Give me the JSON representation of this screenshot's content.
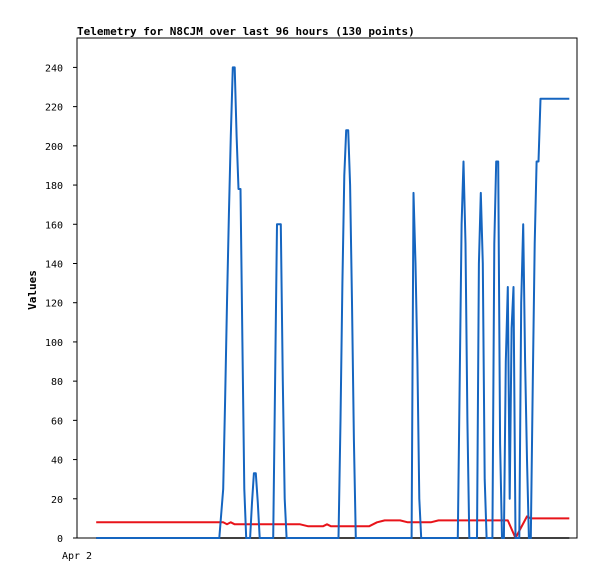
{
  "chart_data": {
    "type": "line",
    "title": "Telemetry for N8CJM over last 96 hours (130 points)",
    "xlabel": "",
    "ylabel": "Values",
    "x_tick_labels": [
      "Apr 2"
    ],
    "x_range_points": [
      0,
      130
    ],
    "ylim": [
      0,
      255
    ],
    "y_ticks": [
      0,
      20,
      40,
      60,
      80,
      100,
      120,
      140,
      160,
      180,
      200,
      220,
      240
    ],
    "grid": false,
    "legend": "none",
    "series": [
      {
        "color": "#000000",
        "points": [
          [
            5,
            0
          ],
          [
            128,
            0
          ]
        ]
      },
      {
        "color": "#e8141a",
        "points": [
          [
            5,
            8
          ],
          [
            38,
            8
          ],
          [
            39,
            7
          ],
          [
            40,
            8
          ],
          [
            41,
            7
          ],
          [
            58,
            7
          ],
          [
            60,
            6
          ],
          [
            64,
            6
          ],
          [
            65,
            7
          ],
          [
            66,
            6
          ],
          [
            76,
            6
          ],
          [
            78,
            8
          ],
          [
            80,
            9
          ],
          [
            84,
            9
          ],
          [
            86,
            8
          ],
          [
            92,
            8
          ],
          [
            94,
            9
          ],
          [
            99,
            9
          ],
          [
            103,
            9
          ],
          [
            112,
            9
          ],
          [
            114,
            0
          ],
          [
            117,
            11
          ],
          [
            118,
            10
          ],
          [
            128,
            10
          ]
        ]
      },
      {
        "color": "#1565c0",
        "points": [
          [
            5,
            0
          ],
          [
            37,
            0
          ],
          [
            38,
            25
          ],
          [
            38.5,
            70
          ],
          [
            39,
            120
          ],
          [
            39.5,
            165
          ],
          [
            40,
            205
          ],
          [
            40.5,
            240
          ],
          [
            41,
            240
          ],
          [
            41.5,
            205
          ],
          [
            42,
            178
          ],
          [
            42.5,
            178
          ],
          [
            43,
            100
          ],
          [
            43.5,
            25
          ],
          [
            44,
            0
          ],
          [
            45,
            0
          ],
          [
            45.5,
            18
          ],
          [
            46,
            33
          ],
          [
            46.5,
            33
          ],
          [
            47,
            18
          ],
          [
            47.5,
            0
          ],
          [
            51,
            0
          ],
          [
            51.5,
            80
          ],
          [
            52,
            160
          ],
          [
            53,
            160
          ],
          [
            53.5,
            80
          ],
          [
            54,
            20
          ],
          [
            54.5,
            0
          ],
          [
            68,
            0
          ],
          [
            68.5,
            60
          ],
          [
            69,
            130
          ],
          [
            69.5,
            185
          ],
          [
            70,
            208
          ],
          [
            70.5,
            208
          ],
          [
            71,
            180
          ],
          [
            71.5,
            120
          ],
          [
            72,
            50
          ],
          [
            72.5,
            0
          ],
          [
            87,
            0
          ],
          [
            87.5,
            176
          ],
          [
            88,
            140
          ],
          [
            88.5,
            90
          ],
          [
            89,
            20
          ],
          [
            89.5,
            0
          ],
          [
            99,
            0
          ],
          [
            99.5,
            80
          ],
          [
            100,
            160
          ],
          [
            100.5,
            192
          ],
          [
            101,
            150
          ],
          [
            101.5,
            60
          ],
          [
            102,
            0
          ],
          [
            104,
            0
          ],
          [
            104.5,
            140
          ],
          [
            105,
            176
          ],
          [
            105.5,
            140
          ],
          [
            106,
            30
          ],
          [
            106.5,
            0
          ],
          [
            108,
            0
          ],
          [
            108.5,
            150
          ],
          [
            109,
            192
          ],
          [
            109.5,
            192
          ],
          [
            110,
            48
          ],
          [
            110.5,
            0
          ],
          [
            111,
            0
          ],
          [
            111.5,
            90
          ],
          [
            112,
            128
          ],
          [
            112.5,
            20
          ],
          [
            113,
            107
          ],
          [
            113.5,
            128
          ],
          [
            114,
            0
          ],
          [
            115,
            0
          ],
          [
            115.5,
            120
          ],
          [
            116,
            160
          ],
          [
            116.5,
            90
          ],
          [
            117,
            40
          ],
          [
            117.5,
            0
          ],
          [
            118,
            0
          ],
          [
            118.5,
            80
          ],
          [
            119,
            150
          ],
          [
            119.5,
            192
          ],
          [
            120,
            192
          ],
          [
            120.5,
            224
          ],
          [
            128,
            224
          ]
        ]
      }
    ]
  }
}
